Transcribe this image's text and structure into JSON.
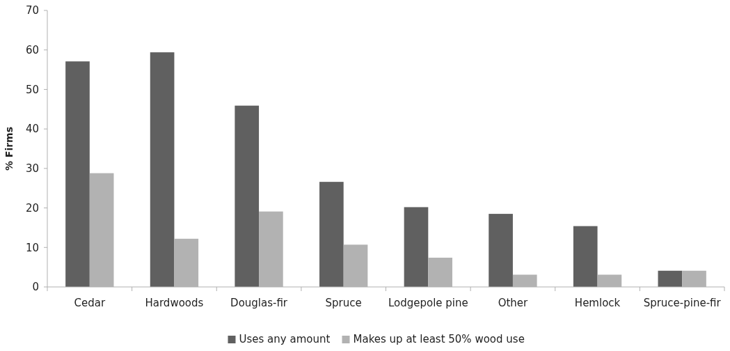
{
  "chart_data": {
    "type": "bar",
    "ylabel": "% Firms",
    "categories": [
      "Cedar",
      "Hardwoods",
      "Douglas-fir",
      "Spruce",
      "Lodgepole pine",
      "Other",
      "Hemlock",
      "Spruce-pine-fir"
    ],
    "series": [
      {
        "name": "Uses any amount",
        "color": "#606060",
        "values": [
          57.1,
          59.4,
          45.9,
          26.6,
          20.2,
          18.5,
          15.4,
          4.1
        ]
      },
      {
        "name": "Makes up at least 50% wood use",
        "color": "#b2b2b2",
        "values": [
          28.8,
          12.2,
          19.1,
          10.7,
          7.4,
          3.1,
          3.1,
          4.1
        ]
      }
    ],
    "ylim": [
      0,
      70
    ],
    "yticks": [
      0,
      10,
      20,
      30,
      40,
      50,
      60,
      70
    ],
    "grid": false,
    "legend": "bottom"
  }
}
